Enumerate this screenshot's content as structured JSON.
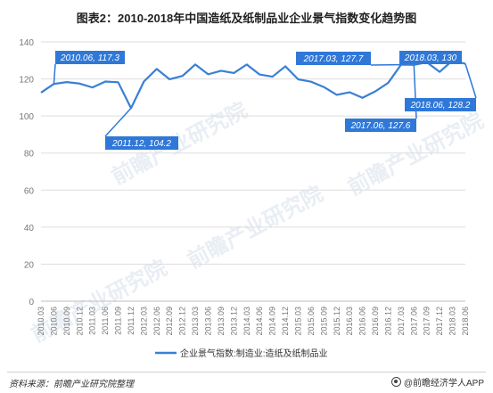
{
  "title": "图表2：2010-2018年中国造纸及纸制品业企业景气指数变化趋势图",
  "source": "资料来源：前瞻产业研究院整理",
  "brand": "@前瞻经济学人APP",
  "watermark": "前瞻产业研究院",
  "colors": {
    "line": "#3a7fd5",
    "callout": "#2f78d8",
    "grid": "#dddddd",
    "axis_text": "#777777"
  },
  "chart_data": {
    "type": "line",
    "title": "图表2：2010-2018年中国造纸及纸制品业企业景气指数变化趋势图",
    "ylim": [
      0,
      140
    ],
    "yticks": [
      0,
      20,
      40,
      60,
      80,
      100,
      120,
      140
    ],
    "grid": true,
    "legend_position": "bottom",
    "tick_labels": [
      "2010.03",
      "2010.06",
      "2010.09",
      "2010.12",
      "2011.03",
      "2011.06",
      "2011.09",
      "2011.12",
      "2012.03",
      "2012.06",
      "2012.09",
      "2012.12",
      "2013.03",
      "2013.06",
      "2013.09",
      "2013.12",
      "2014.03",
      "2014.06",
      "2014.09",
      "2014.12",
      "2015.03",
      "2015.06",
      "2015.09",
      "2015.12",
      "2016.03",
      "2016.06",
      "2016.09",
      "2016.12",
      "2017.03",
      "2017.06",
      "2017.09",
      "2017.12",
      "2018.03",
      "2018.06"
    ],
    "series": [
      {
        "name": "企业景气指数:制造业:造纸及纸制品业",
        "x": [
          "2010.03",
          "2010.06",
          "2010.09",
          "2010.12",
          "2011.03",
          "2011.06",
          "2011.09",
          "2011.12",
          "2012.03",
          "2012.06",
          "2012.09",
          "2012.12",
          "2013.03",
          "2013.06",
          "2013.09",
          "2013.12",
          "2014.03",
          "2014.06",
          "2014.09",
          "2014.12",
          "2015.03",
          "2015.06",
          "2015.09",
          "2015.12",
          "2016.03",
          "2016.06",
          "2016.09",
          "2016.12",
          "2017.03",
          "2017.06",
          "2017.09",
          "2017.12",
          "2018.03",
          "2018.06"
        ],
        "values": [
          112.6,
          117.3,
          118.3,
          117.5,
          115.4,
          118.6,
          118.2,
          104.2,
          118.6,
          125.4,
          119.8,
          121.6,
          127.8,
          122.5,
          124.4,
          123.2,
          127.8,
          122.4,
          121.2,
          126.8,
          119.8,
          118.5,
          115.6,
          111.4,
          112.8,
          109.8,
          113.3,
          117.9,
          127.7,
          127.6,
          129.0,
          123.8,
          130.0,
          128.2
        ]
      }
    ],
    "annotations": [
      {
        "text": "2010.06, 117.3",
        "x": "2010.06",
        "y": 117.3
      },
      {
        "text": "2011.12, 104.2",
        "x": "2011.12",
        "y": 104.2
      },
      {
        "text": "2017.03, 127.7",
        "x": "2017.03",
        "y": 127.7
      },
      {
        "text": "2017.06, 127.6",
        "x": "2017.06",
        "y": 127.6
      },
      {
        "text": "2018.03, 130",
        "x": "2018.03",
        "y": 130
      },
      {
        "text": "2018.06, 128.2",
        "x": "2018.06",
        "y": 128.2
      }
    ]
  }
}
